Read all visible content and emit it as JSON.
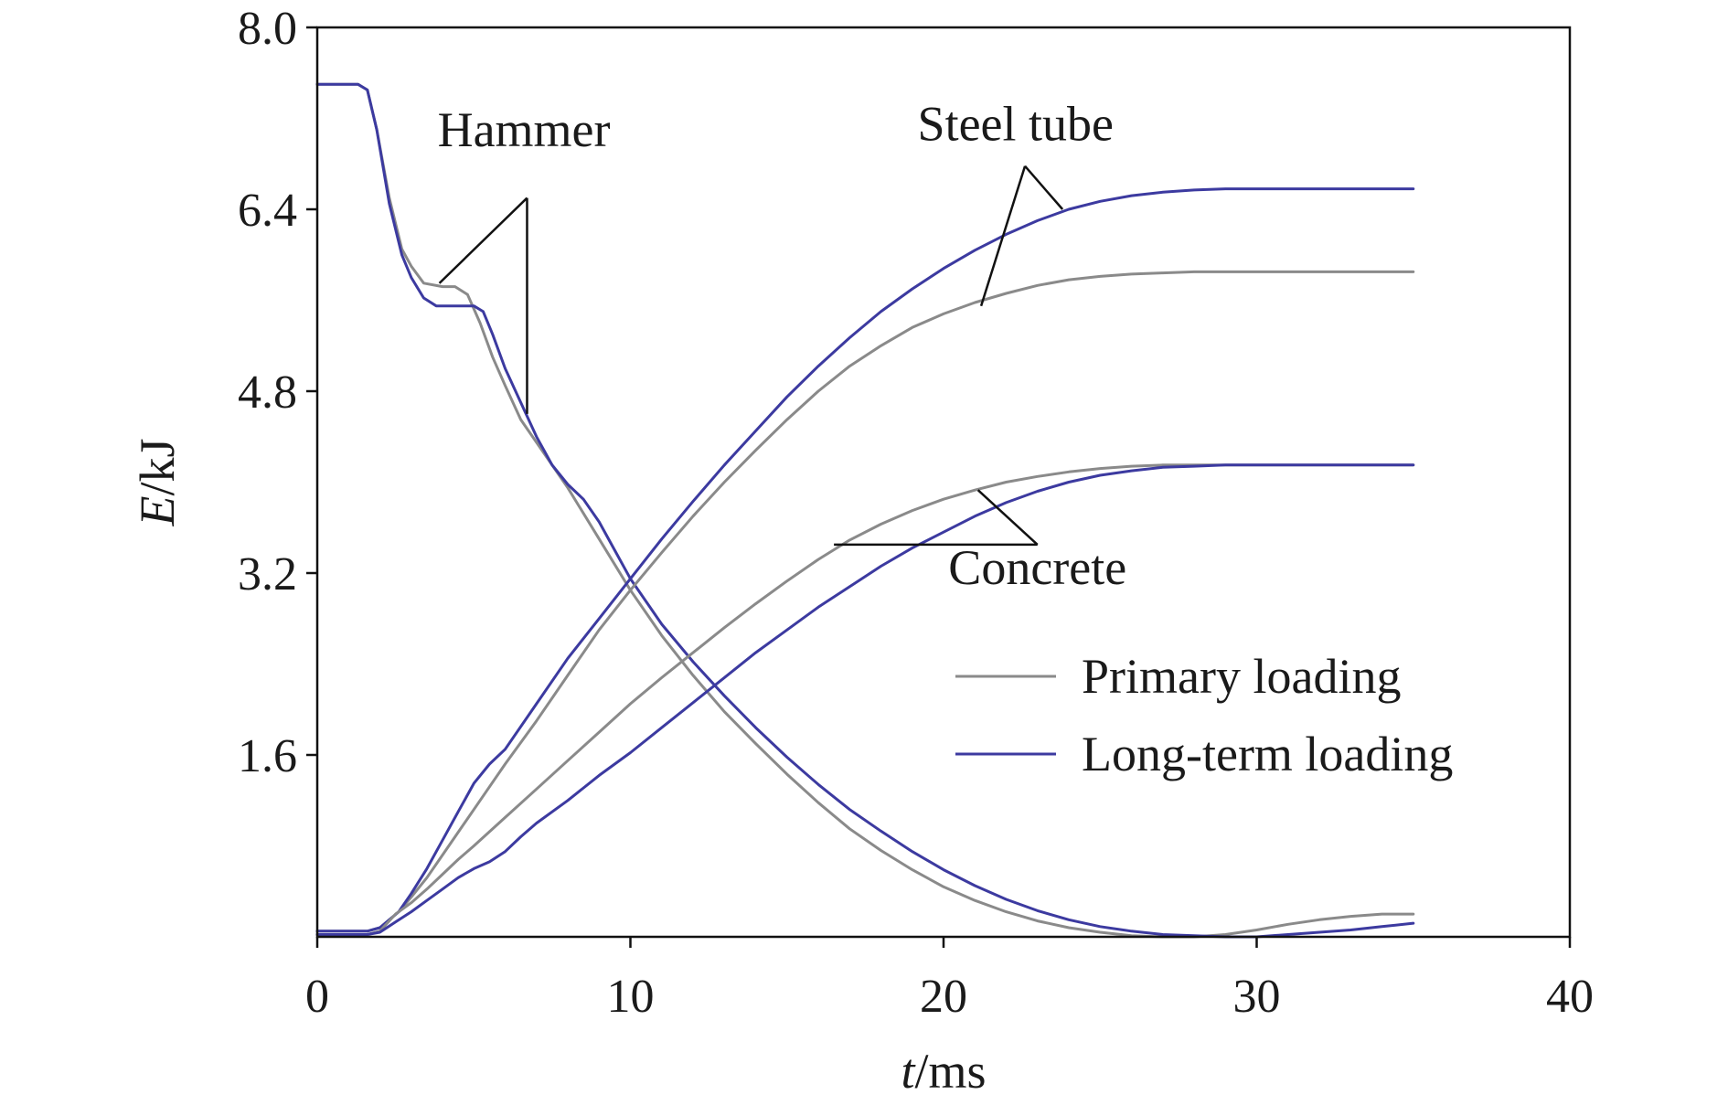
{
  "chart_data": {
    "type": "line",
    "xlabel": "t/ms",
    "xlabel_var": "t",
    "xlabel_unit": "/ms",
    "ylabel": "E/kJ",
    "ylabel_var": "E",
    "ylabel_unit": "/kJ",
    "xlim": [
      0,
      40
    ],
    "ylim": [
      0,
      8.0
    ],
    "xticks": [
      0,
      10,
      20,
      30,
      40
    ],
    "xtick_labels": [
      "0",
      "10",
      "20",
      "30",
      "40"
    ],
    "yticks": [
      1.6,
      3.2,
      4.8,
      6.4,
      8.0
    ],
    "ytick_labels": [
      "1.6",
      "3.2",
      "4.8",
      "6.4",
      "8.0"
    ],
    "grid": false,
    "legend_position": "bottom-right",
    "series": [
      {
        "name": "Primary loading",
        "component": "Hammer",
        "color": "#8a8a8a",
        "x": [
          0,
          1.3,
          1.6,
          1.9,
          2.3,
          2.7,
          3.0,
          3.4,
          4.0,
          4.4,
          4.8,
          5.2,
          5.6,
          6.0,
          6.5,
          7.0,
          8.0,
          9.0,
          10.0,
          11.0,
          12.0,
          13.0,
          14.0,
          15.0,
          16.0,
          17.0,
          18.0,
          19.0,
          20.0,
          21.0,
          22.0,
          23.0,
          24.0,
          25.0,
          26.0,
          27.0,
          28.0,
          29.0,
          30.0,
          31.0,
          32.0,
          33.0,
          34.0,
          35.0
        ],
        "y": [
          7.5,
          7.5,
          7.45,
          7.1,
          6.5,
          6.05,
          5.9,
          5.75,
          5.72,
          5.72,
          5.65,
          5.4,
          5.1,
          4.85,
          4.55,
          4.35,
          3.95,
          3.5,
          3.05,
          2.65,
          2.3,
          1.98,
          1.7,
          1.43,
          1.18,
          0.95,
          0.76,
          0.59,
          0.44,
          0.32,
          0.22,
          0.14,
          0.08,
          0.04,
          0.01,
          0.0,
          0.0,
          0.02,
          0.06,
          0.11,
          0.15,
          0.18,
          0.2,
          0.2
        ]
      },
      {
        "name": "Long-term loading",
        "component": "Hammer",
        "color": "#3c3aa0",
        "x": [
          0,
          1.3,
          1.6,
          1.9,
          2.3,
          2.7,
          3.0,
          3.4,
          3.8,
          4.2,
          4.6,
          5.0,
          5.3,
          5.6,
          6.0,
          6.5,
          7.0,
          7.5,
          8.0,
          8.5,
          9.0,
          9.5,
          10.0,
          11.0,
          12.0,
          13.0,
          14.0,
          15.0,
          16.0,
          17.0,
          18.0,
          19.0,
          20.0,
          21.0,
          22.0,
          23.0,
          24.0,
          25.0,
          26.0,
          27.0,
          28.0,
          29.0,
          30.0,
          31.0,
          32.0,
          33.0,
          34.0,
          35.0
        ],
        "y": [
          7.5,
          7.5,
          7.45,
          7.1,
          6.45,
          6.0,
          5.8,
          5.62,
          5.55,
          5.55,
          5.55,
          5.55,
          5.5,
          5.3,
          5.0,
          4.7,
          4.4,
          4.15,
          3.98,
          3.85,
          3.65,
          3.4,
          3.15,
          2.75,
          2.42,
          2.12,
          1.84,
          1.58,
          1.34,
          1.12,
          0.93,
          0.75,
          0.59,
          0.45,
          0.33,
          0.23,
          0.15,
          0.09,
          0.05,
          0.02,
          0.01,
          0.0,
          0.0,
          0.02,
          0.04,
          0.06,
          0.09,
          0.12
        ]
      },
      {
        "name": "Primary loading",
        "component": "Steel tube",
        "color": "#8a8a8a",
        "x": [
          0,
          1.6,
          2.0,
          2.6,
          3.0,
          3.5,
          4.0,
          4.5,
          5.0,
          5.5,
          6.0,
          7.0,
          8.0,
          9.0,
          10.0,
          11.0,
          12.0,
          13.0,
          14.0,
          15.0,
          16.0,
          17.0,
          18.0,
          19.0,
          20.0,
          21.0,
          22.0,
          23.0,
          24.0,
          25.0,
          26.0,
          27.0,
          28.0,
          29.0,
          30.0,
          31.0,
          32.0,
          33.0,
          34.0,
          35.0
        ],
        "y": [
          0.05,
          0.05,
          0.08,
          0.22,
          0.35,
          0.52,
          0.72,
          0.92,
          1.12,
          1.32,
          1.52,
          1.9,
          2.3,
          2.7,
          3.05,
          3.38,
          3.7,
          4.0,
          4.28,
          4.55,
          4.8,
          5.02,
          5.2,
          5.36,
          5.48,
          5.58,
          5.66,
          5.73,
          5.78,
          5.81,
          5.83,
          5.84,
          5.85,
          5.85,
          5.85,
          5.85,
          5.85,
          5.85,
          5.85,
          5.85
        ]
      },
      {
        "name": "Long-term loading",
        "component": "Steel tube",
        "color": "#3c3aa0",
        "x": [
          0,
          1.6,
          2.0,
          2.6,
          3.0,
          3.5,
          4.0,
          4.5,
          5.0,
          5.5,
          6.0,
          7.0,
          8.0,
          9.0,
          10.0,
          11.0,
          12.0,
          13.0,
          14.0,
          15.0,
          16.0,
          17.0,
          18.0,
          19.0,
          20.0,
          21.0,
          22.0,
          23.0,
          24.0,
          25.0,
          26.0,
          27.0,
          28.0,
          29.0,
          30.0,
          31.0,
          32.0,
          33.0,
          34.0,
          35.0
        ],
        "y": [
          0.05,
          0.05,
          0.08,
          0.22,
          0.38,
          0.6,
          0.85,
          1.1,
          1.35,
          1.52,
          1.65,
          2.05,
          2.45,
          2.8,
          3.15,
          3.5,
          3.83,
          4.15,
          4.45,
          4.75,
          5.02,
          5.27,
          5.5,
          5.7,
          5.88,
          6.04,
          6.18,
          6.3,
          6.4,
          6.47,
          6.52,
          6.55,
          6.57,
          6.58,
          6.58,
          6.58,
          6.58,
          6.58,
          6.58,
          6.58
        ]
      },
      {
        "name": "Primary loading",
        "component": "Concrete",
        "color": "#8a8a8a",
        "x": [
          0,
          1.6,
          2.0,
          2.5,
          3.0,
          3.5,
          4.0,
          4.5,
          5.0,
          6.0,
          7.0,
          8.0,
          9.0,
          10.0,
          11.0,
          12.0,
          13.0,
          14.0,
          15.0,
          16.0,
          17.0,
          18.0,
          19.0,
          20.0,
          21.0,
          22.0,
          23.0,
          24.0,
          25.0,
          26.0,
          27.0,
          28.0,
          29.0,
          30.0,
          31.0,
          32.0,
          33.0,
          34.0,
          35.0
        ],
        "y": [
          0.02,
          0.02,
          0.05,
          0.2,
          0.3,
          0.42,
          0.55,
          0.68,
          0.8,
          1.05,
          1.3,
          1.55,
          1.8,
          2.05,
          2.28,
          2.5,
          2.72,
          2.93,
          3.13,
          3.32,
          3.49,
          3.63,
          3.75,
          3.85,
          3.93,
          4.0,
          4.05,
          4.09,
          4.12,
          4.14,
          4.15,
          4.15,
          4.15,
          4.15,
          4.15,
          4.15,
          4.15,
          4.15,
          4.15
        ]
      },
      {
        "name": "Long-term loading",
        "component": "Concrete",
        "color": "#3c3aa0",
        "x": [
          0,
          1.6,
          2.0,
          2.5,
          3.0,
          3.5,
          4.0,
          4.5,
          5.0,
          5.5,
          6.0,
          6.5,
          7.0,
          8.0,
          9.0,
          10.0,
          11.0,
          12.0,
          13.0,
          14.0,
          15.0,
          16.0,
          17.0,
          18.0,
          19.0,
          20.0,
          21.0,
          22.0,
          23.0,
          24.0,
          25.0,
          26.0,
          27.0,
          28.0,
          29.0,
          30.0,
          31.0,
          32.0,
          33.0,
          34.0,
          35.0
        ],
        "y": [
          0.02,
          0.02,
          0.04,
          0.13,
          0.22,
          0.32,
          0.42,
          0.52,
          0.6,
          0.66,
          0.75,
          0.88,
          1.0,
          1.2,
          1.42,
          1.62,
          1.84,
          2.06,
          2.28,
          2.5,
          2.7,
          2.9,
          3.08,
          3.26,
          3.42,
          3.56,
          3.7,
          3.82,
          3.92,
          4.0,
          4.06,
          4.1,
          4.13,
          4.14,
          4.15,
          4.15,
          4.15,
          4.15,
          4.15,
          4.15,
          4.15
        ]
      }
    ],
    "annotations": [
      {
        "text": "Hammer",
        "label_pos": [
          6.6,
          7.1
        ],
        "apex": [
          6.7,
          6.5
        ],
        "targets": [
          [
            3.9,
            5.75
          ],
          [
            6.7,
            4.6
          ]
        ]
      },
      {
        "text": "Steel tube",
        "label_pos": [
          22.3,
          7.15
        ],
        "apex": [
          22.6,
          6.78
        ],
        "targets": [
          [
            21.2,
            5.55
          ],
          [
            23.8,
            6.4
          ]
        ]
      },
      {
        "text": "Concrete",
        "label_pos": [
          23.0,
          3.25
        ],
        "apex": [
          23.0,
          3.45
        ],
        "targets": [
          [
            16.5,
            3.45
          ],
          [
            21.1,
            3.93
          ]
        ]
      }
    ],
    "legend": [
      {
        "label": "Primary loading",
        "color": "#8a8a8a"
      },
      {
        "label": "Long-term loading",
        "color": "#3c3aa0"
      }
    ]
  }
}
